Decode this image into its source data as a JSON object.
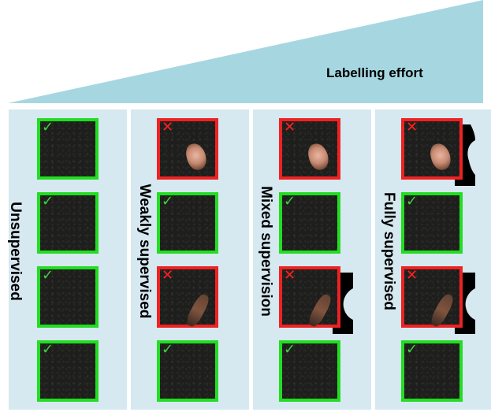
{
  "effort_label": "Labelling effort",
  "colors": {
    "wedge": "#a6d7e1",
    "panel": "#d6e8f0",
    "positive_border": "#22dd22",
    "negative_border": "#ee2222"
  },
  "icons": {
    "check": "✓",
    "cross": "✕"
  },
  "panels": [
    {
      "title": "Unsupervised",
      "tiles": [
        "pos",
        "pos",
        "pos",
        "pos"
      ]
    },
    {
      "title": "Weakly supervised",
      "tiles": [
        "neg-lesion",
        "pos",
        "neg-streak",
        "pos"
      ]
    },
    {
      "title": "Mixed supervision",
      "tiles": [
        "neg-lesion",
        "pos",
        "neg-streak",
        "pos"
      ]
    },
    {
      "title": "Fully supervised",
      "tiles": [
        "neg-lesion",
        "pos",
        "neg-streak",
        "pos"
      ]
    }
  ]
}
